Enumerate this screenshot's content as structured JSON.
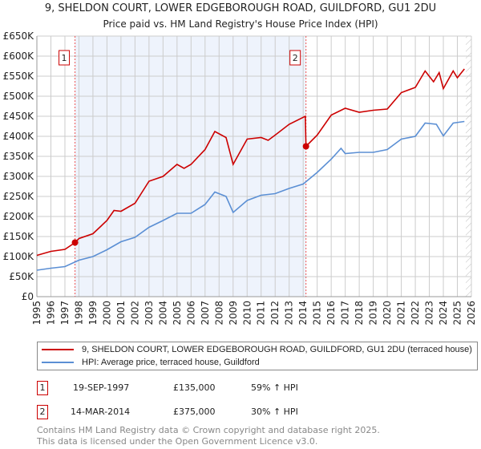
{
  "title": "9, SHELDON COURT, LOWER EDGEBOROUGH ROAD, GUILDFORD, GU1 2DU",
  "subtitle": "Price paid vs. HM Land Registry's House Price Index (HPI)",
  "chart_data": {
    "type": "line",
    "xlim": [
      1995,
      2026
    ],
    "ylim": [
      0,
      650000
    ],
    "yticks": [
      0,
      50000,
      100000,
      150000,
      200000,
      250000,
      300000,
      350000,
      400000,
      450000,
      500000,
      550000,
      600000,
      650000
    ],
    "ytick_labels": [
      "£0",
      "£50K",
      "£100K",
      "£150K",
      "£200K",
      "£250K",
      "£300K",
      "£350K",
      "£400K",
      "£450K",
      "£500K",
      "£550K",
      "£600K",
      "£650K"
    ],
    "xtick_labels": [
      "1995",
      "1996",
      "1997",
      "1998",
      "1999",
      "2000",
      "2001",
      "2002",
      "2003",
      "2004",
      "2005",
      "2006",
      "2007",
      "2008",
      "2009",
      "2010",
      "2011",
      "2012",
      "2013",
      "2014",
      "2015",
      "2016",
      "2017",
      "2018",
      "2019",
      "2020",
      "2021",
      "2022",
      "2023",
      "2024",
      "2025",
      "2026"
    ],
    "grid": true,
    "shaded_range": [
      1997.72,
      2014.2
    ],
    "hatched_from": 2025.6,
    "series": [
      {
        "name": "9, SHELDON COURT, LOWER EDGEBOROUGH ROAD, GUILDFORD, GU1 2DU (terraced house)",
        "color": "#cc0000",
        "x": [
          1995,
          1996,
          1997,
          1997.72,
          1998,
          1999,
          2000,
          2000.5,
          2001,
          2002,
          2003,
          2004,
          2005,
          2005.5,
          2006,
          2007,
          2007.7,
          2008.5,
          2009,
          2010,
          2011,
          2011.5,
          2012,
          2013,
          2014.15,
          2014.2,
          2015,
          2016,
          2017,
          2018,
          2019,
          2020,
          2021,
          2022,
          2022.7,
          2023.3,
          2023.7,
          2024,
          2024.7,
          2025,
          2025.5
        ],
        "y": [
          103000,
          113000,
          118000,
          135000,
          145000,
          157000,
          190000,
          215000,
          213000,
          233000,
          288000,
          300000,
          330000,
          320000,
          330000,
          367000,
          412000,
          397000,
          330000,
          393000,
          397000,
          390000,
          403000,
          430000,
          450000,
          375000,
          403000,
          453000,
          470000,
          460000,
          465000,
          468000,
          509000,
          522000,
          563000,
          536000,
          559000,
          519000,
          563000,
          546000,
          568000
        ]
      },
      {
        "name": "HPI: Average price, terraced house, Guildford",
        "color": "#5b8fd4",
        "x": [
          1995,
          1996,
          1997,
          1998,
          1999,
          2000,
          2001,
          2002,
          2003,
          2004,
          2005,
          2006,
          2007,
          2007.7,
          2008.5,
          2009,
          2010,
          2011,
          2012,
          2013,
          2014,
          2015,
          2016,
          2016.7,
          2017,
          2018,
          2019,
          2020,
          2021,
          2022,
          2022.7,
          2023.5,
          2024,
          2024.7,
          2025.5
        ],
        "y": [
          66000,
          71000,
          75000,
          91000,
          100000,
          117000,
          137000,
          148000,
          173000,
          190000,
          208000,
          208000,
          230000,
          261000,
          250000,
          210000,
          240000,
          253000,
          257000,
          270000,
          281000,
          310000,
          343000,
          370000,
          357000,
          360000,
          360000,
          367000,
          393000,
          400000,
          433000,
          430000,
          401000,
          433000,
          437000
        ]
      }
    ],
    "annotations": [
      {
        "label": "1",
        "x": 1997.72,
        "y": 135000
      },
      {
        "label": "2",
        "x": 2014.2,
        "y": 375000
      }
    ]
  },
  "legend": [
    "9, SHELDON COURT, LOWER EDGEBOROUGH ROAD, GUILDFORD, GU1 2DU (terraced house)",
    "HPI: Average price, terraced house, Guildford"
  ],
  "sales": [
    {
      "num": "1",
      "date": "19-SEP-1997",
      "price": "£135,000",
      "hpi": "59% ↑ HPI"
    },
    {
      "num": "2",
      "date": "14-MAR-2014",
      "price": "£375,000",
      "hpi": "30% ↑ HPI"
    }
  ],
  "footer": [
    "Contains HM Land Registry data © Crown copyright and database right 2025.",
    "This data is licensed under the Open Government Licence v3.0."
  ]
}
